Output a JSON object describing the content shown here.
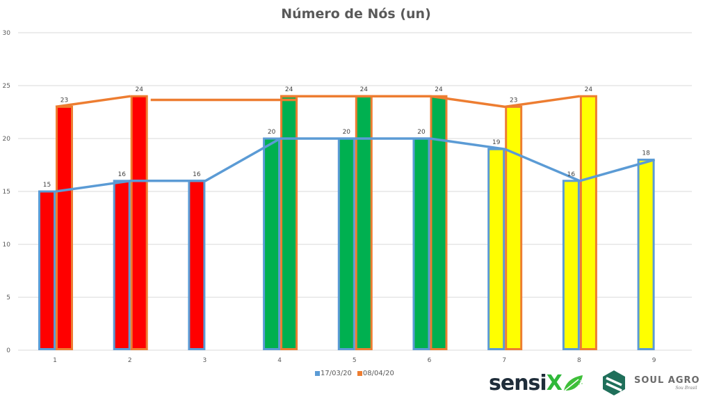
{
  "chart_data": {
    "type": "bar",
    "title": "Número de Nós (un)",
    "xlabel": "",
    "ylabel": "",
    "ylim": [
      0,
      30
    ],
    "yticks": [
      0,
      5,
      10,
      15,
      20,
      25,
      30
    ],
    "grid": true,
    "legend_position": "bottom",
    "categories": [
      "1",
      "2",
      "3",
      "4",
      "5",
      "6",
      "7",
      "8",
      "9"
    ],
    "series": [
      {
        "name": "17/03/20",
        "color": "#5b9bd5",
        "values": [
          15,
          16,
          16,
          20,
          20,
          20,
          19,
          16,
          18
        ],
        "render": "bar+line"
      },
      {
        "name": "08/04/20",
        "color": "#ed7d31",
        "values": [
          23,
          24,
          null,
          24,
          24,
          24,
          23,
          24,
          null
        ],
        "render": "bar+line"
      }
    ],
    "bar_fill_by_category": [
      "#ff0000",
      "#ff0000",
      "#ff0000",
      "#00b050",
      "#00b050",
      "#00b050",
      "#ffff00",
      "#ffff00",
      "#ffff00"
    ],
    "data_labels": true
  },
  "legend": {
    "items": [
      {
        "label": "17/03/20",
        "color": "#5b9bd5"
      },
      {
        "label": "08/04/20",
        "color": "#ed7d31"
      }
    ]
  },
  "logos": {
    "sensix": {
      "text_main": "sensi",
      "text_x": "X"
    },
    "soul_agro": {
      "name": "SOUL AGRO",
      "tagline": "Sou Brasil"
    }
  }
}
